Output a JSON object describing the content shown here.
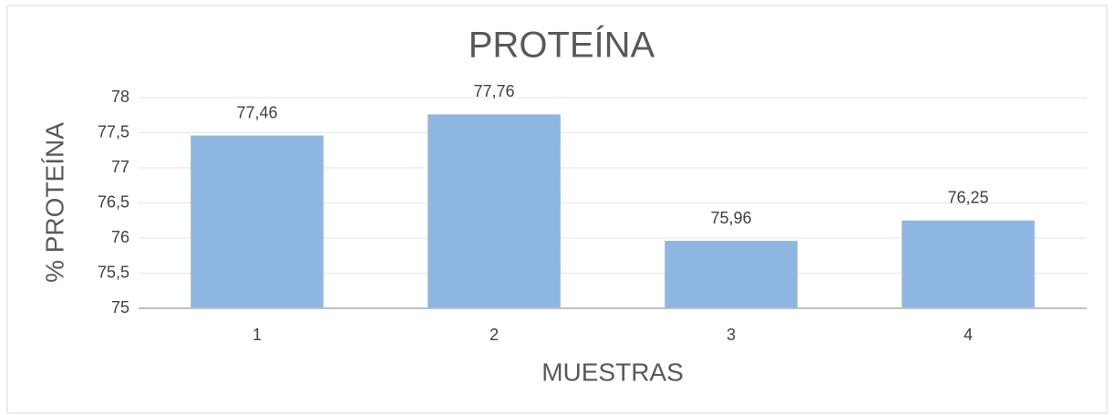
{
  "chart_data": {
    "type": "bar",
    "title": "PROTEÍNA",
    "x_label": "MUESTRAS",
    "y_label": "% PROTEÍNA",
    "categories": [
      "1",
      "2",
      "3",
      "4"
    ],
    "values": [
      77.46,
      77.76,
      75.96,
      76.25
    ],
    "value_labels": [
      "77,46",
      "77,76",
      "75,96",
      "76,25"
    ],
    "color": "#8db6e2",
    "ylim": [
      75,
      78
    ],
    "yticks": [
      75,
      {
        "value": 75.5,
        "label": "75,5"
      },
      76,
      {
        "value": 76.5,
        "label": "76,5"
      },
      77,
      {
        "value": 77.5,
        "label": "77,5"
      },
      78
    ],
    "grid": true
  }
}
